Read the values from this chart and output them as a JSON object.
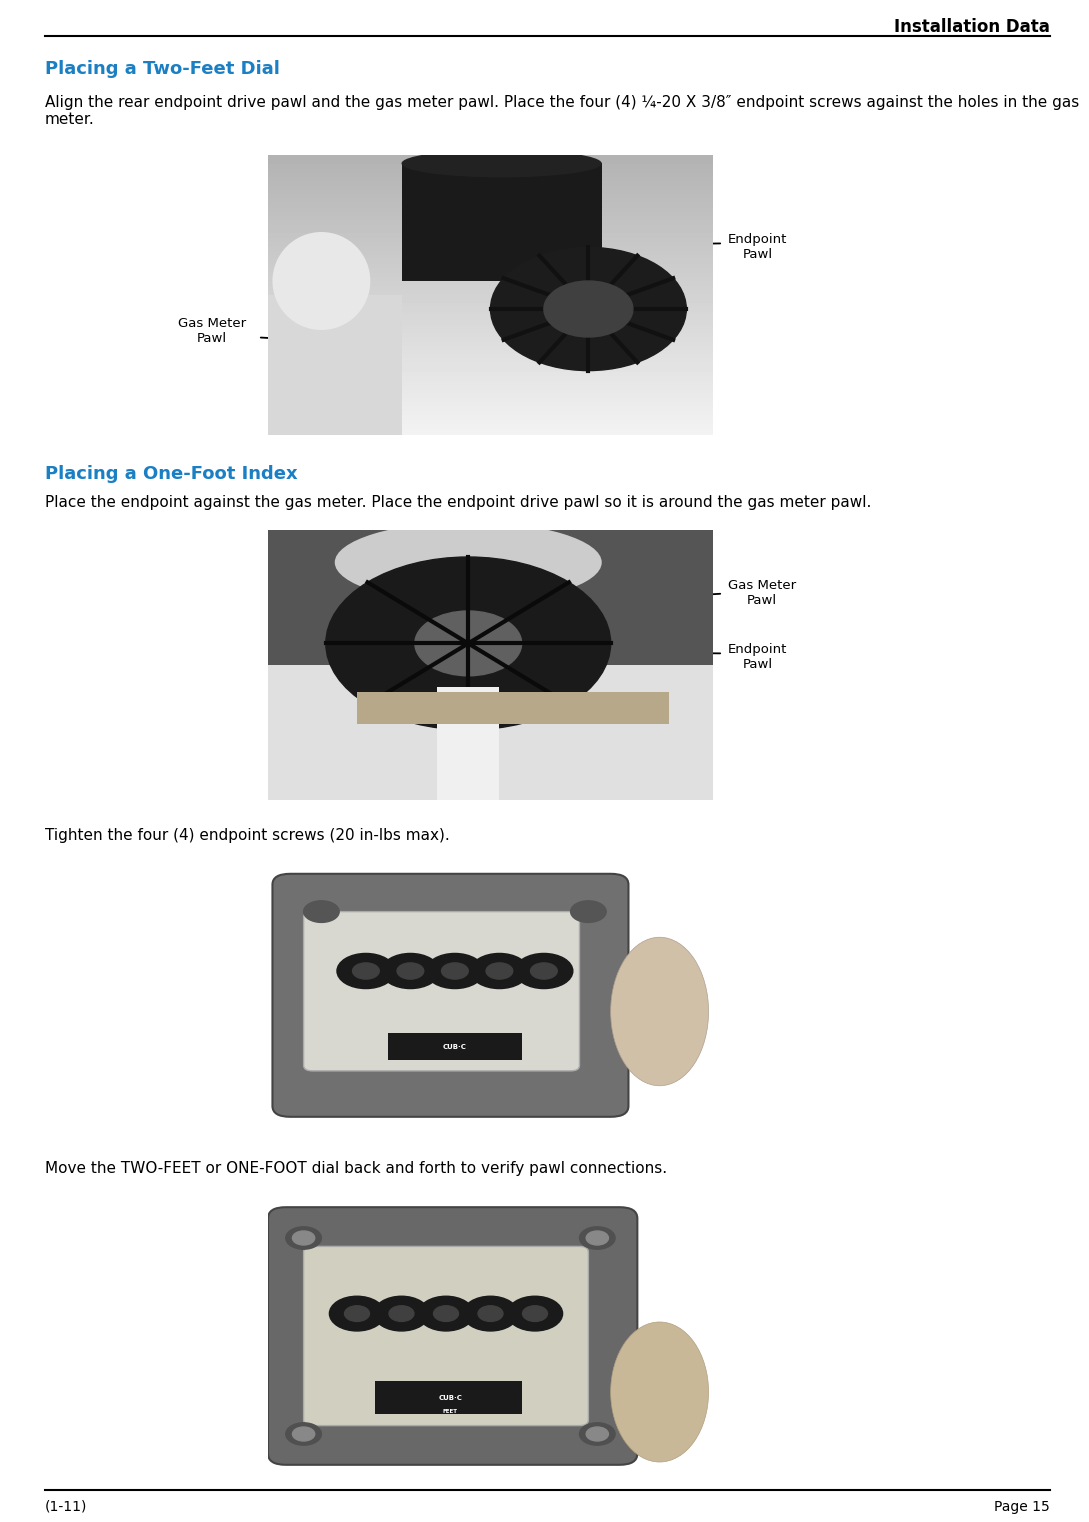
{
  "page_title": "Installation Data",
  "footer_left": "(1-11)",
  "footer_right": "Page 15",
  "section1_heading": "Placing a Two-Feet Dial",
  "section1_body": "Align the rear endpoint drive pawl and the gas meter pawl. Place the four (4) ¼-20 X 3/8″ endpoint screws against the holes in the gas meter.",
  "section2_heading": "Placing a One-Foot Index",
  "section2_body": "Place the endpoint against the gas meter. Place the endpoint drive pawl so it is around the gas meter pawl.",
  "section3_body": "Tighten the four (4) endpoint screws (20 in-lbs max).",
  "section4_body": "Move the TWO-FEET or ONE-FOOT dial back and forth to verify pawl connections.",
  "img1_label_right": "Endpoint\nPawl",
  "img1_label_left": "Gas Meter\nPawl",
  "img2_label_top": "Gas Meter\nPawl",
  "img2_label_bot": "Endpoint\nPawl",
  "heading_color": "#1b7fc4",
  "title_color": "#000000",
  "body_color": "#000000",
  "background_color": "#ffffff"
}
